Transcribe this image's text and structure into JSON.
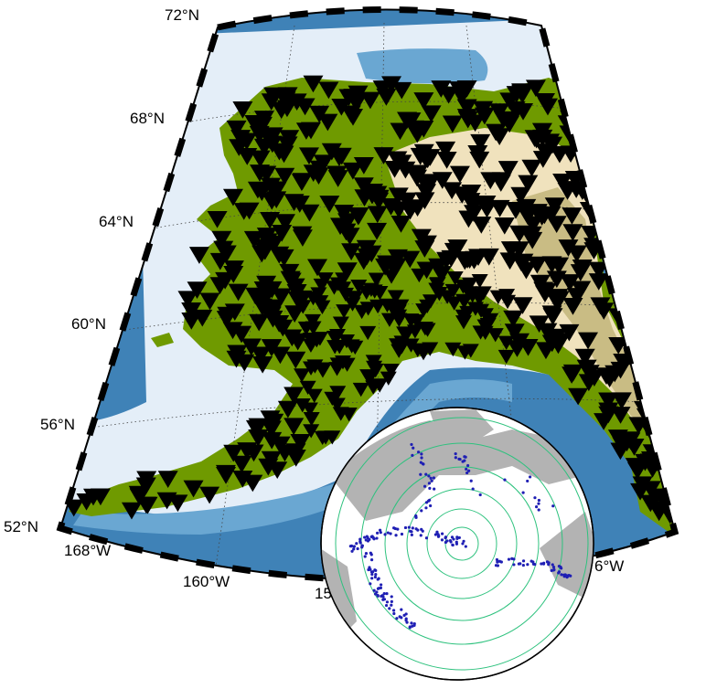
{
  "map": {
    "lat_labels": [
      "72°N",
      "68°N",
      "64°N",
      "60°N",
      "56°N",
      "52°N"
    ],
    "lon_labels": [
      "168°W",
      "160°W",
      "15",
      "6°W"
    ],
    "colors": {
      "ocean_deep": "#3f82b7",
      "ocean_mid": "#6aa7d2",
      "ocean_shelf": "#e4eef8",
      "lowland": "#6f9a00",
      "upland": "#f0e2bd",
      "mountain": "#c9bc84",
      "station": "#000000",
      "inset_land": "#b3b3b3",
      "inset_ring": "#2ec27e",
      "inset_event": "#1f1fb4"
    },
    "symbols": {
      "station": "inverted-triangle",
      "event": "dot"
    }
  }
}
